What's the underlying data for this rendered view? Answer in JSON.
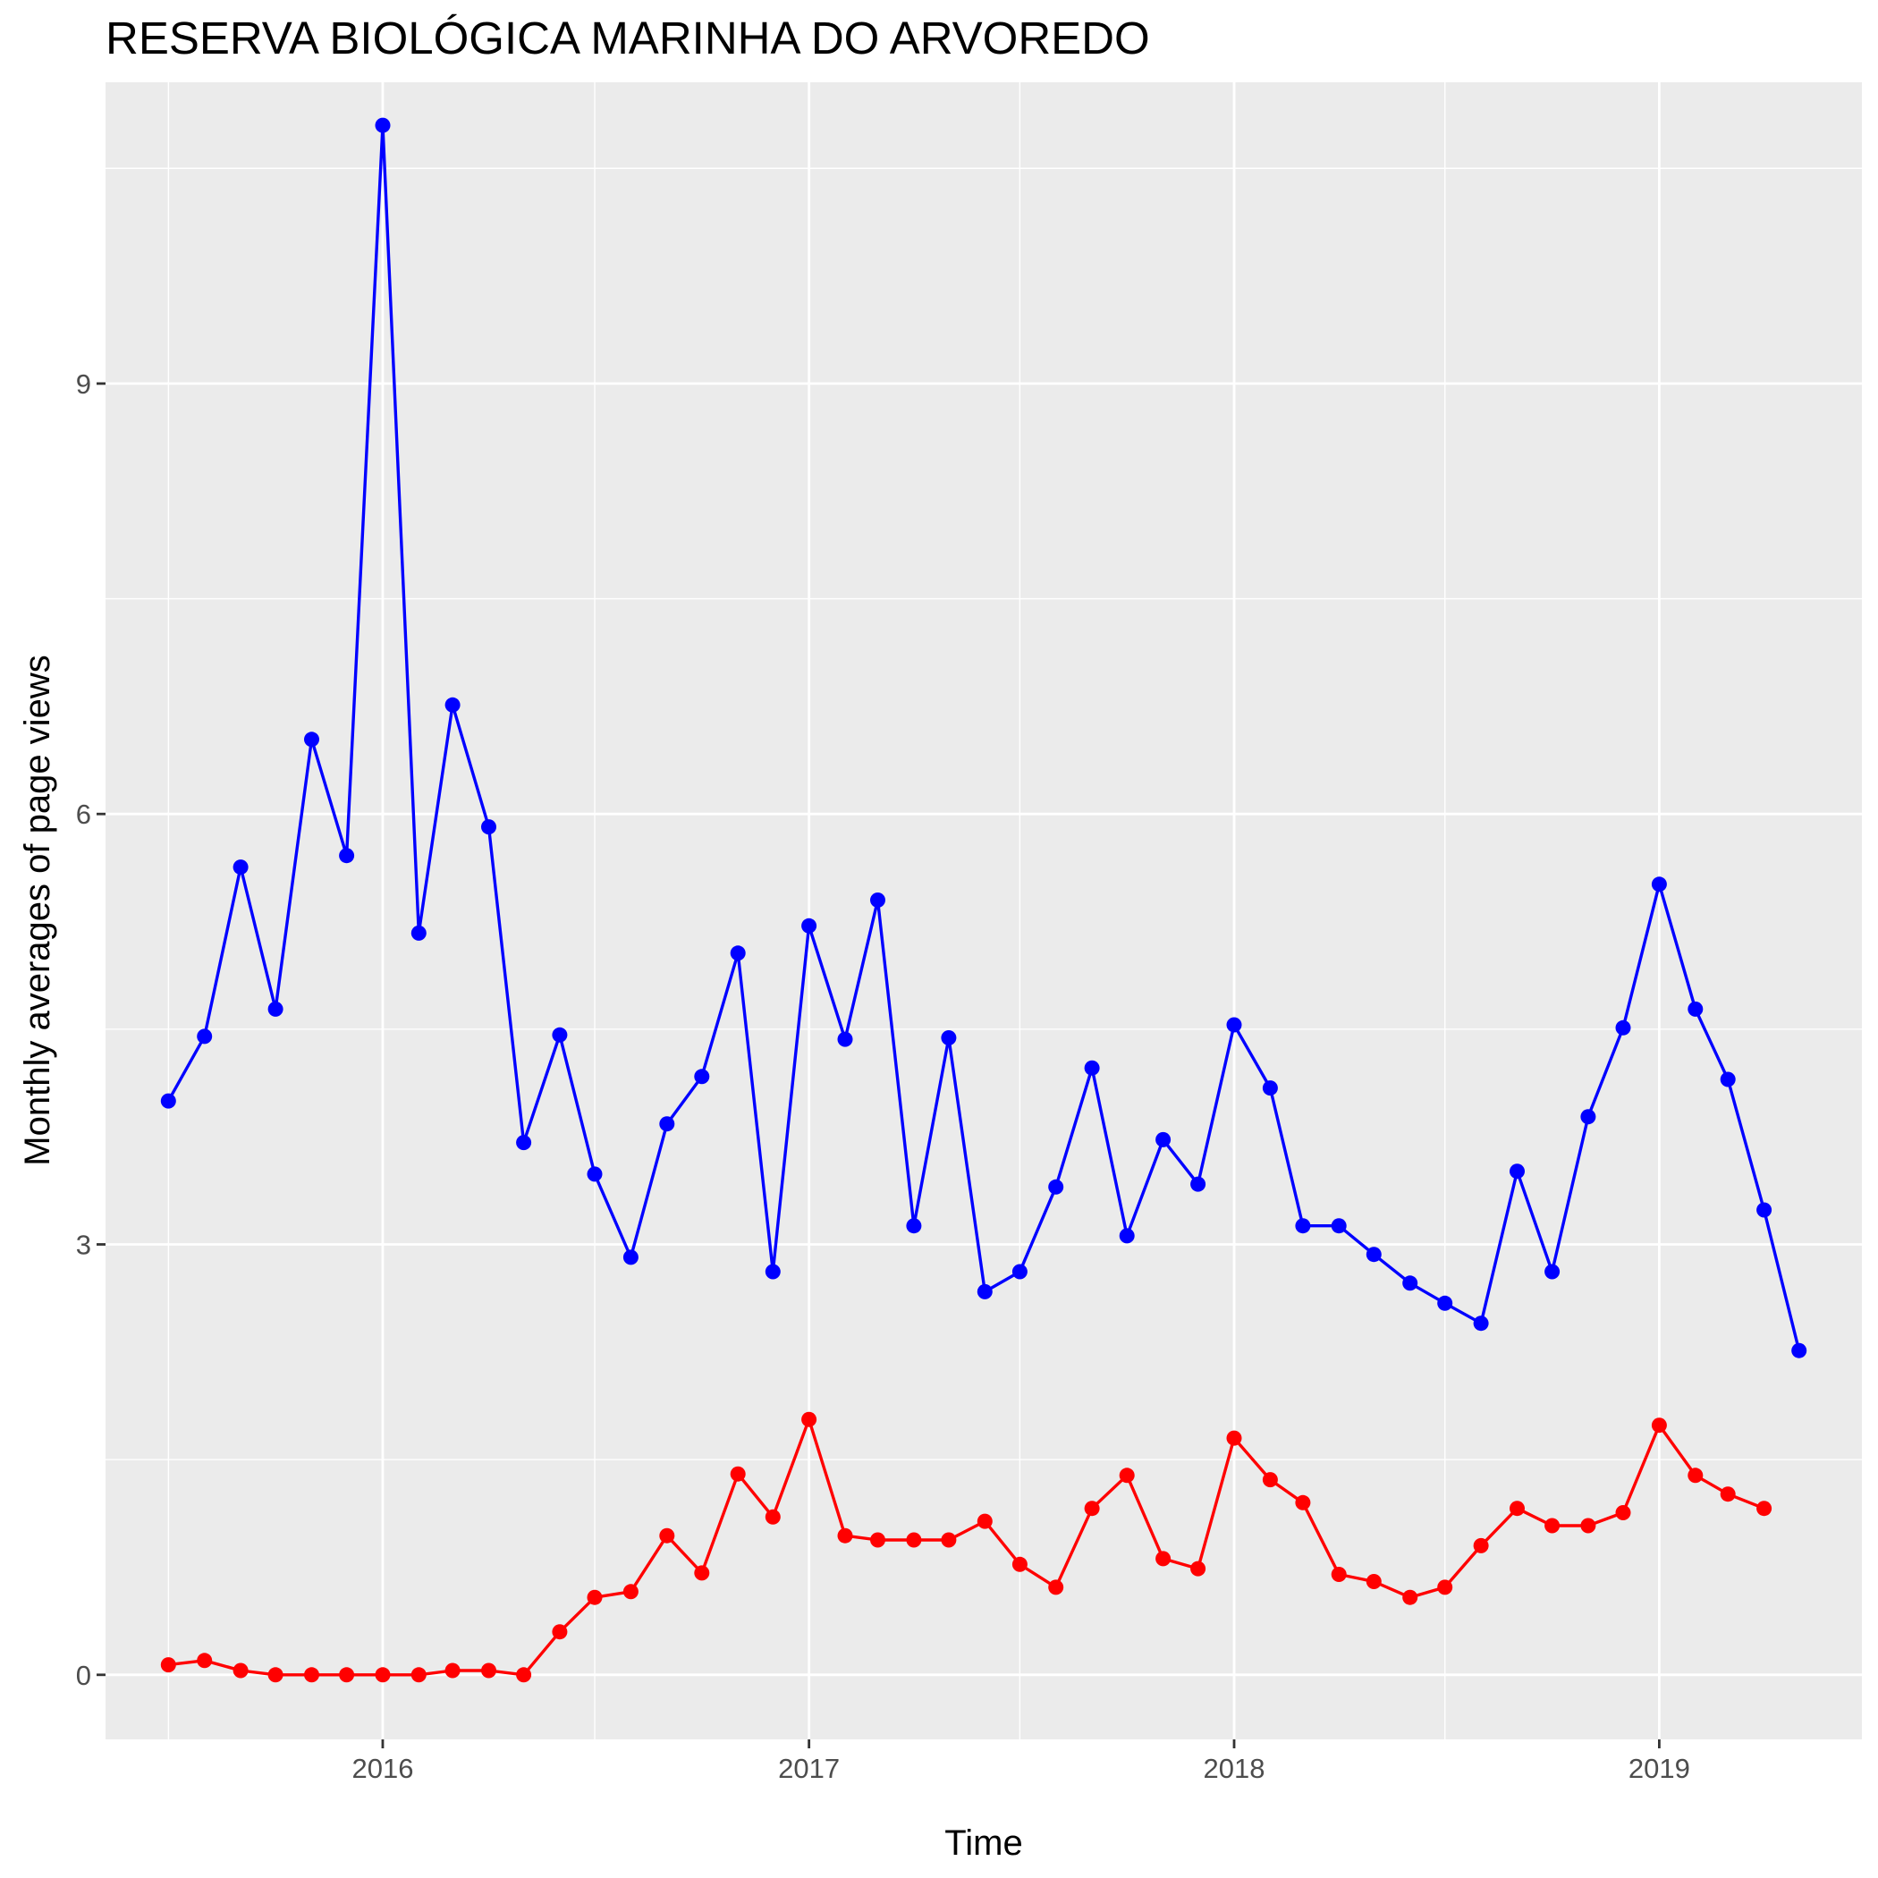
{
  "chart_data": {
    "type": "line",
    "title": "RESERVA BIOLÓGICA MARINHA DO ARVOREDO",
    "xlabel": "Time",
    "ylabel": "Monthly averages of page views",
    "x_ticks": [
      "2016",
      "2017",
      "2018",
      "2019"
    ],
    "y_ticks": [
      "0",
      "3",
      "6",
      "9"
    ],
    "xlim": [
      "2015-05-08",
      "2019-06-24"
    ],
    "ylim": [
      -0.45,
      11.1
    ],
    "grid": true,
    "legend": "none",
    "x": [
      "2015-07",
      "2015-08",
      "2015-09",
      "2015-10",
      "2015-11",
      "2015-12",
      "2016-01",
      "2016-02",
      "2016-03",
      "2016-04",
      "2016-05",
      "2016-06",
      "2016-07",
      "2016-08",
      "2016-09",
      "2016-10",
      "2016-11",
      "2016-12",
      "2017-01",
      "2017-02",
      "2017-03",
      "2017-04",
      "2017-05",
      "2017-06",
      "2017-07",
      "2017-08",
      "2017-09",
      "2017-10",
      "2017-11",
      "2017-12",
      "2018-01",
      "2018-02",
      "2018-03",
      "2018-04",
      "2018-05",
      "2018-06",
      "2018-07",
      "2018-08",
      "2018-09",
      "2018-10",
      "2018-11",
      "2018-12",
      "2019-01",
      "2019-02",
      "2019-03",
      "2019-04",
      "2019-05"
    ],
    "series": [
      {
        "color": "#0000ff",
        "values": [
          4.0,
          4.45,
          5.63,
          4.64,
          6.52,
          5.71,
          10.8,
          5.17,
          6.76,
          5.91,
          3.71,
          4.46,
          3.49,
          2.91,
          3.84,
          4.17,
          5.03,
          2.81,
          5.22,
          4.43,
          5.4,
          3.13,
          4.44,
          2.67,
          2.81,
          3.4,
          4.23,
          3.06,
          3.73,
          3.42,
          4.53,
          4.09,
          3.13,
          3.13,
          2.93,
          2.73,
          2.59,
          2.45,
          3.51,
          2.81,
          3.89,
          4.51,
          5.51,
          4.64,
          4.15,
          3.24,
          2.26
        ]
      },
      {
        "color": "#ff0000",
        "values": [
          0.07,
          0.1,
          0.03,
          0.0,
          0.0,
          0.0,
          0.0,
          0.0,
          0.03,
          0.03,
          0.0,
          0.3,
          0.54,
          0.58,
          0.97,
          0.71,
          1.4,
          1.1,
          1.78,
          0.97,
          0.94,
          0.94,
          0.94,
          1.07,
          0.77,
          0.61,
          1.16,
          1.39,
          0.81,
          0.74,
          1.65,
          1.36,
          1.2,
          0.7,
          0.65,
          0.54,
          0.61,
          0.9,
          1.16,
          1.04,
          1.04,
          1.13,
          1.74,
          1.39,
          1.26,
          1.16,
          null
        ]
      }
    ]
  }
}
